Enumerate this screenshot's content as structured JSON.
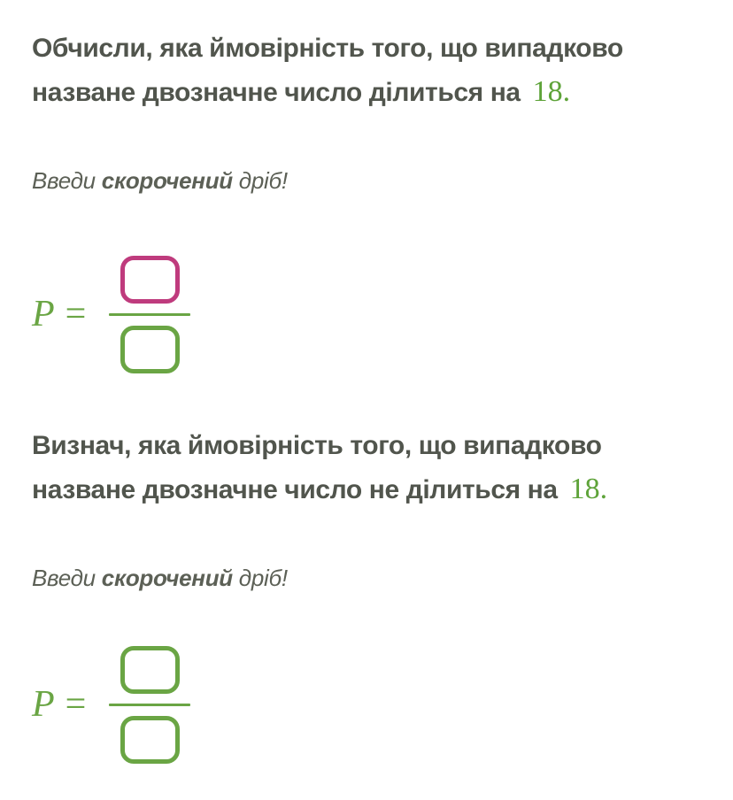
{
  "colors": {
    "green": "#6aa544",
    "number_green": "#5ea339",
    "magenta_focused": "#bf3b7d",
    "heading_text": "#51554d",
    "instruction_text": "#5c6056",
    "background": "#ffffff"
  },
  "tasks": [
    {
      "question": {
        "line1": "Обчисли, яка ймовірність того, що випадково",
        "line2": "назване двозначне число ділиться на",
        "number": "18."
      },
      "instruction": {
        "word1": "Введи",
        "word2": "скорочений",
        "word3": "дріб!"
      },
      "formula": {
        "label": "P",
        "equals": "=",
        "numerator": "",
        "denominator": ""
      }
    },
    {
      "question": {
        "line1": "Визнач, яка ймовірність того, що випадково",
        "line2": "назване двозначне число не ділиться на",
        "number": "18."
      },
      "instruction": {
        "word1": "Введи",
        "word2": "скорочений",
        "word3": "дріб!"
      },
      "formula": {
        "label": "P",
        "equals": "=",
        "numerator": "",
        "denominator": ""
      }
    }
  ]
}
